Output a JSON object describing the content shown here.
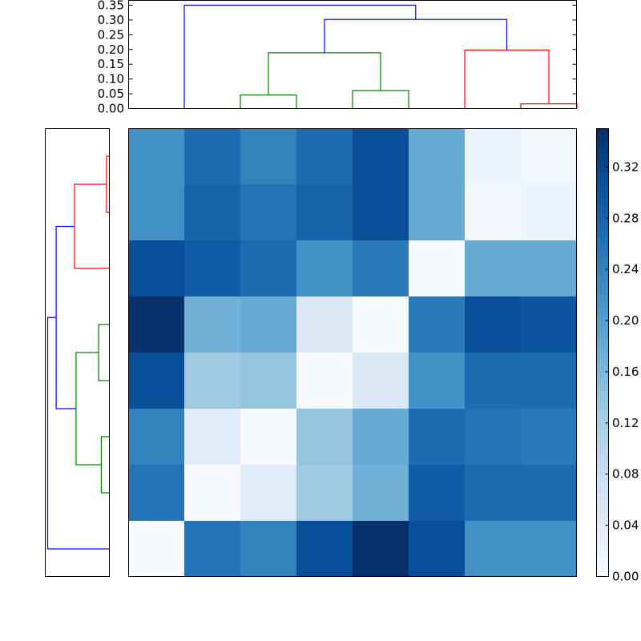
{
  "chart_data": [
    {
      "type": "dendrogram",
      "orientation": "top",
      "yticks": [
        "0.00",
        "0.05",
        "0.10",
        "0.15",
        "0.20",
        "0.25",
        "0.30",
        "0.35"
      ],
      "ylim": [
        0,
        0.36
      ],
      "leaf_positions": [
        1,
        2,
        3,
        4,
        5,
        6,
        7,
        8
      ],
      "links": [
        {
          "color": "#008000",
          "left": 2.5,
          "right": 3.5,
          "height": 0.046,
          "left_h": 0,
          "right_h": 0
        },
        {
          "color": "#008000",
          "left": 4.5,
          "right": 5.5,
          "height": 0.061,
          "left_h": 0,
          "right_h": 0
        },
        {
          "color": "#008000",
          "left": 3.0,
          "right": 5.0,
          "height": 0.189,
          "left_h": 0.046,
          "right_h": 0.061
        },
        {
          "color": "#ff0000",
          "left": 7.5,
          "right": 8.5,
          "height": 0.016,
          "left_h": 0,
          "right_h": 0
        },
        {
          "color": "#ff0000",
          "left": 6.5,
          "right": 8.0,
          "height": 0.198,
          "left_h": 0,
          "right_h": 0.016
        },
        {
          "color": "#0000ff",
          "left": 4.0,
          "right": 7.25,
          "height": 0.302,
          "left_h": 0.189,
          "right_h": 0.198
        },
        {
          "color": "#0000ff",
          "left": 1.5,
          "right": 5.625,
          "height": 0.35,
          "left_h": 0,
          "right_h": 0.302
        }
      ]
    },
    {
      "type": "dendrogram",
      "orientation": "left",
      "xlim": [
        0,
        0.36
      ],
      "links": [
        {
          "color": "#ff0000",
          "top": 0.5,
          "bottom": 1.5,
          "height": 0.016,
          "top_h": 0,
          "bottom_h": 0
        },
        {
          "color": "#ff0000",
          "top": 1.0,
          "bottom": 2.5,
          "height": 0.198,
          "top_h": 0.016,
          "bottom_h": 0
        },
        {
          "color": "#008000",
          "top": 3.5,
          "bottom": 4.5,
          "height": 0.061,
          "top_h": 0,
          "bottom_h": 0
        },
        {
          "color": "#008000",
          "top": 5.5,
          "bottom": 6.5,
          "height": 0.046,
          "top_h": 0,
          "bottom_h": 0
        },
        {
          "color": "#008000",
          "top": 4.0,
          "bottom": 6.0,
          "height": 0.189,
          "top_h": 0.061,
          "bottom_h": 0.046
        },
        {
          "color": "#0000ff",
          "top": 1.75,
          "bottom": 5.0,
          "height": 0.302,
          "top_h": 0.198,
          "bottom_h": 0.189
        },
        {
          "color": "#0000ff",
          "top": 3.375,
          "bottom": 7.5,
          "height": 0.35,
          "top_h": 0.302,
          "bottom_h": 0
        }
      ]
    },
    {
      "type": "heatmap",
      "colormap": "Blues",
      "vmin": 0,
      "vmax": 0.35,
      "values": [
        [
          0.22,
          0.27,
          0.24,
          0.27,
          0.31,
          0.18,
          0.02,
          0.01
        ],
        [
          0.22,
          0.28,
          0.26,
          0.28,
          0.31,
          0.18,
          0.01,
          0.02
        ],
        [
          0.31,
          0.29,
          0.27,
          0.22,
          0.25,
          0.0,
          0.18,
          0.18
        ],
        [
          0.35,
          0.17,
          0.18,
          0.05,
          0.0,
          0.25,
          0.31,
          0.3
        ],
        [
          0.31,
          0.13,
          0.14,
          0.0,
          0.05,
          0.22,
          0.27,
          0.27
        ],
        [
          0.24,
          0.04,
          0.0,
          0.14,
          0.18,
          0.27,
          0.26,
          0.25
        ],
        [
          0.26,
          0.0,
          0.04,
          0.13,
          0.17,
          0.29,
          0.27,
          0.27
        ],
        [
          0.0,
          0.26,
          0.24,
          0.31,
          0.35,
          0.31,
          0.22,
          0.22
        ]
      ]
    },
    {
      "type": "colorbar",
      "colormap": "Blues",
      "range": [
        0,
        0.35
      ],
      "ticks": [
        "0.00",
        "0.04",
        "0.08",
        "0.12",
        "0.16",
        "0.20",
        "0.24",
        "0.28",
        "0.32"
      ]
    }
  ]
}
